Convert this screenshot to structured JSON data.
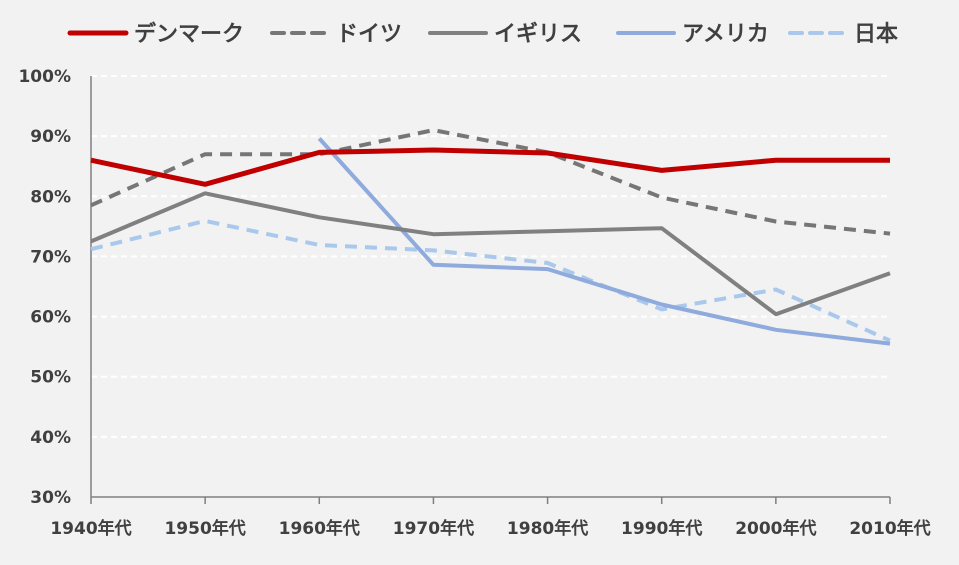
{
  "chart_data": {
    "type": "line",
    "title": "",
    "xlabel": "",
    "ylabel": "",
    "categories": [
      "1940年代",
      "1950年代",
      "1960年代",
      "1970年代",
      "1980年代",
      "1990年代",
      "2000年代",
      "2010年代"
    ],
    "y_ticks": [
      "30%",
      "40%",
      "50%",
      "60%",
      "70%",
      "80%",
      "90%",
      "100%"
    ],
    "ylim": [
      30,
      100
    ],
    "unit": "%",
    "grid": "horizontal dashed",
    "legend_position": "top",
    "series": [
      {
        "name": "デンマーク",
        "color": "#c00000",
        "style": "solid",
        "values": [
          86,
          82,
          87.3,
          87.7,
          87.2,
          84.3,
          86,
          86
        ]
      },
      {
        "name": "ドイツ",
        "color": "#767676",
        "style": "dashed",
        "values": [
          78.5,
          87,
          87,
          91,
          87.3,
          79.8,
          75.8,
          73.8
        ]
      },
      {
        "name": "イギリス",
        "color": "#808080",
        "style": "solid",
        "values": [
          72.5,
          80.5,
          76.5,
          73.7,
          74.2,
          74.7,
          60.4,
          67.2
        ]
      },
      {
        "name": "アメリカ",
        "color": "#8faadc",
        "style": "solid",
        "values": [
          null,
          null,
          89.6,
          68.6,
          67.9,
          62,
          57.8,
          55.5
        ]
      },
      {
        "name": "日本",
        "color": "#a9c8ec",
        "style": "dashed",
        "values": [
          71.2,
          75.9,
          71.9,
          71,
          68.9,
          61.2,
          64.5,
          56
        ]
      }
    ]
  }
}
